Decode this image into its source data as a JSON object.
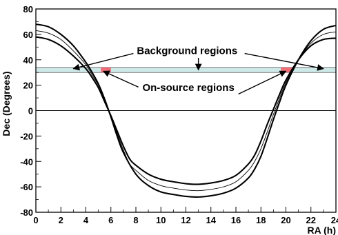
{
  "chart_data": {
    "type": "line",
    "title": "",
    "xlabel": "RA (h)",
    "ylabel": "Dec (Degrees)",
    "xlim": [
      0,
      24
    ],
    "ylim": [
      -80,
      80
    ],
    "xticks": [
      0,
      2,
      4,
      6,
      8,
      10,
      12,
      14,
      16,
      18,
      20,
      22,
      24
    ],
    "yticks": [
      80,
      60,
      40,
      20,
      0,
      -20,
      -40,
      -60,
      -80
    ],
    "xtick_labels": [
      "0",
      "2",
      "4",
      "6",
      "8",
      "10",
      "12",
      "14",
      "16",
      "18",
      "20",
      "22",
      "24"
    ],
    "ytick_labels": [
      "80",
      "60",
      "40",
      "20",
      "0",
      "-20",
      "-40",
      "-60",
      "-80"
    ],
    "grid": false,
    "reference_line": {
      "y": 0
    },
    "series": [
      {
        "style": "thick",
        "x": [
          0,
          1,
          2,
          3,
          4,
          4.5,
          5,
          5.5,
          6,
          6.5,
          7,
          8,
          9,
          10,
          11,
          12,
          13,
          14,
          15,
          16,
          17,
          17.5,
          18,
          18.5,
          19,
          19.5,
          20,
          21,
          22,
          23,
          24
        ],
        "y": [
          68,
          66,
          60,
          51,
          38,
          30,
          21,
          9,
          -5,
          -20,
          -33,
          -50,
          -59,
          -64,
          -66,
          -67.5,
          -68,
          -67,
          -65,
          -61,
          -53,
          -46,
          -36,
          -22,
          -7,
          7,
          20,
          40,
          55,
          64,
          67
        ]
      },
      {
        "style": "thin",
        "x": [
          0,
          1,
          2,
          3,
          4,
          4.5,
          5,
          5.5,
          6,
          6.5,
          7,
          7.5,
          8,
          9,
          10,
          11,
          12,
          13,
          14,
          15,
          16,
          17,
          17.5,
          18,
          18.5,
          19,
          19.5,
          20,
          21,
          22,
          23,
          24
        ],
        "y": [
          63,
          61,
          56,
          47,
          36,
          28,
          20,
          9,
          -4,
          -18,
          -31,
          -42,
          -47,
          -55,
          -59,
          -61,
          -62.5,
          -63,
          -62,
          -60,
          -56,
          -47,
          -40,
          -30,
          -17,
          -3,
          10,
          22,
          40,
          53,
          60,
          62
        ]
      },
      {
        "style": "thick",
        "x": [
          0,
          1,
          2,
          3,
          4,
          4.5,
          5,
          5.5,
          6,
          6.5,
          7,
          7.5,
          8,
          9,
          10,
          11,
          12,
          13,
          14,
          15,
          16,
          17,
          17.5,
          18,
          18.5,
          19,
          19.5,
          20,
          21,
          22,
          23,
          24
        ],
        "y": [
          58,
          56,
          51,
          43,
          33,
          26,
          18,
          7,
          -4,
          -16,
          -28,
          -38,
          -43,
          -50,
          -54,
          -56,
          -57.5,
          -58,
          -57,
          -55,
          -51,
          -42,
          -35,
          -24,
          -11,
          1,
          13,
          24,
          40,
          51,
          56,
          57
        ]
      }
    ],
    "background_band": {
      "x": [
        0,
        24
      ],
      "y": [
        30,
        34
      ]
    },
    "on_source_regions": [
      {
        "x": [
          5.2,
          6.0
        ],
        "y": [
          30,
          34
        ]
      },
      {
        "x": [
          19.6,
          20.5
        ],
        "y": [
          30,
          34
        ]
      }
    ],
    "annotations": {
      "background": {
        "text": "Background regions",
        "position": [
          12.1,
          44.6
        ],
        "arrow_targets": [
          [
            3.0,
            33.0
          ],
          [
            13.0,
            32.0
          ],
          [
            23.0,
            33.0
          ]
        ]
      },
      "on_source": {
        "text": "On-source regions",
        "position": [
          12.2,
          15.4
        ],
        "arrow_targets": [
          [
            5.4,
            31.0
          ],
          [
            20.0,
            31.0
          ]
        ]
      }
    },
    "colors": {
      "band": "#cfe9e9",
      "on_source": "#ee6e78",
      "line": "#000000"
    }
  }
}
